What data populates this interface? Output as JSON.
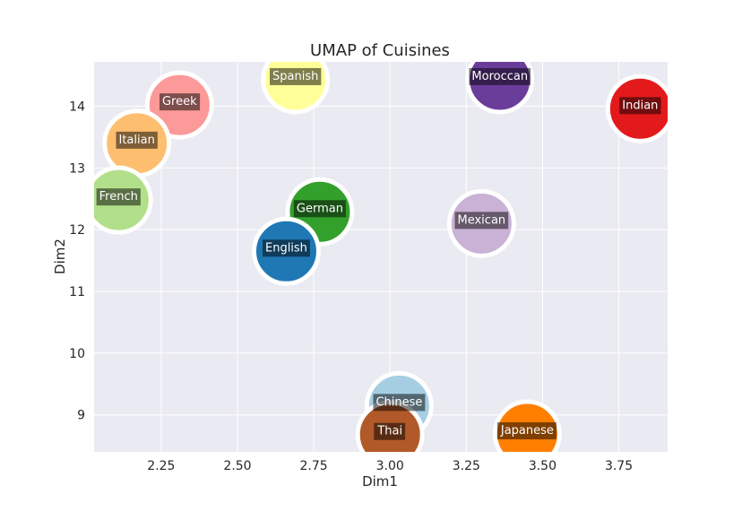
{
  "chart_data": {
    "type": "scatter",
    "title": "UMAP of Cuisines",
    "xlabel": "Dim1",
    "ylabel": "Dim2",
    "xlim": [
      2.03,
      3.91
    ],
    "ylim": [
      8.4,
      14.72
    ],
    "xticks": [
      2.25,
      2.5,
      2.75,
      3.0,
      3.25,
      3.5,
      3.75
    ],
    "xtick_labels": [
      "2.25",
      "2.50",
      "2.75",
      "3.00",
      "3.25",
      "3.50",
      "3.75"
    ],
    "yticks": [
      9,
      10,
      11,
      12,
      13,
      14
    ],
    "ytick_labels": [
      "9",
      "10",
      "11",
      "12",
      "13",
      "14"
    ],
    "grid": true,
    "background": "#eaeaf2",
    "points": [
      {
        "label": "Greek",
        "x": 2.31,
        "y": 14.02,
        "color": "#fb9a99"
      },
      {
        "label": "Italian",
        "x": 2.17,
        "y": 13.4,
        "color": "#fdbf6f"
      },
      {
        "label": "French",
        "x": 2.11,
        "y": 12.48,
        "color": "#b2df8a"
      },
      {
        "label": "Spanish",
        "x": 2.69,
        "y": 14.43,
        "color": "#ffff99"
      },
      {
        "label": "Moroccan",
        "x": 3.36,
        "y": 14.43,
        "color": "#6a3d9a"
      },
      {
        "label": "Indian",
        "x": 3.82,
        "y": 13.96,
        "color": "#e31a1c"
      },
      {
        "label": "German",
        "x": 2.77,
        "y": 12.29,
        "color": "#33a02c"
      },
      {
        "label": "English",
        "x": 2.66,
        "y": 11.65,
        "color": "#1f78b4"
      },
      {
        "label": "Mexican",
        "x": 3.3,
        "y": 12.1,
        "color": "#cab2d6"
      },
      {
        "label": "Chinese",
        "x": 3.03,
        "y": 9.15,
        "color": "#a6cee3"
      },
      {
        "label": "Thai",
        "x": 3.0,
        "y": 8.68,
        "color": "#b15928"
      },
      {
        "label": "Japanese",
        "x": 3.45,
        "y": 8.69,
        "color": "#ff7f00"
      }
    ]
  }
}
